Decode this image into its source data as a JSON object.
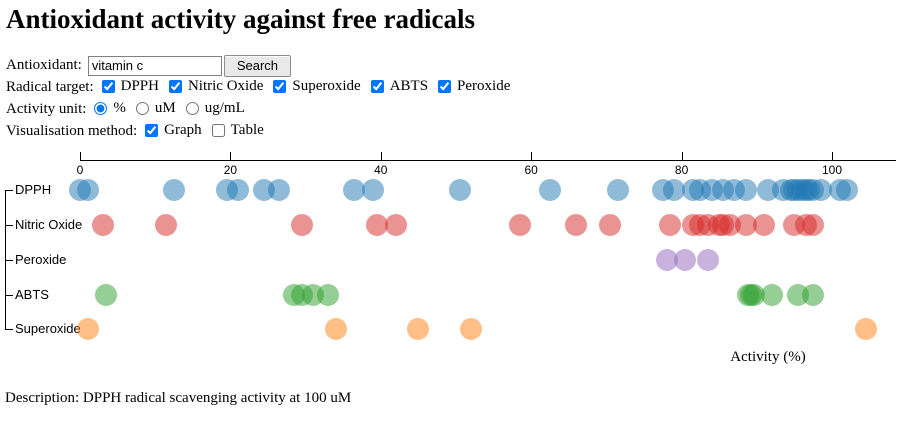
{
  "title": "Antioxidant activity against free radicals",
  "form": {
    "antioxidant_label": "Antioxidant:",
    "search_value": "vitamin c",
    "search_button": "Search",
    "radical_target_label": "Radical target:",
    "radical_targets": [
      {
        "label": "DPPH",
        "checked": true
      },
      {
        "label": "Nitric Oxide",
        "checked": true
      },
      {
        "label": "Superoxide",
        "checked": true
      },
      {
        "label": "ABTS",
        "checked": true
      },
      {
        "label": "Peroxide",
        "checked": true
      }
    ],
    "activity_unit_label": "Activity unit:",
    "activity_units": [
      {
        "label": "%",
        "selected": true
      },
      {
        "label": "uM",
        "selected": false
      },
      {
        "label": "ug/mL",
        "selected": false
      }
    ],
    "visualisation_label": "Visualisation method:",
    "visualisation_options": [
      {
        "label": "Graph",
        "checked": true
      },
      {
        "label": "Table",
        "checked": false
      }
    ]
  },
  "chart_data": {
    "type": "scatter",
    "subtype": "horizontal-strip-plot",
    "xlabel": "Activity (%)",
    "x_ticks": [
      0,
      20,
      40,
      60,
      80,
      100
    ],
    "xlim": [
      0,
      107
    ],
    "grid": false,
    "legend": "none",
    "point_opacity": 0.5,
    "categories": [
      "DPPH",
      "Nitric Oxide",
      "Peroxide",
      "ABTS",
      "Superoxide"
    ],
    "series": [
      {
        "name": "DPPH",
        "color": "#1f77b4",
        "values": [
          0,
          1,
          12.5,
          19.5,
          21,
          24.5,
          26.5,
          36.5,
          39,
          50.5,
          62.5,
          71.5,
          77.5,
          79,
          81.5,
          82.5,
          84,
          85.5,
          87,
          88.5,
          91.5,
          93.5,
          94.5,
          95,
          95.5,
          96,
          96.5,
          97,
          97.5,
          98.5,
          101,
          102
        ]
      },
      {
        "name": "Nitric Oxide",
        "color": "#d62728",
        "values": [
          3,
          11.5,
          29.5,
          39.5,
          42,
          58.5,
          66,
          70.5,
          78.5,
          81.5,
          82.5,
          83.5,
          85,
          85.5,
          86.5,
          88.5,
          91,
          95,
          96.5,
          97.5
        ]
      },
      {
        "name": "Peroxide",
        "color": "#9467bd",
        "values": [
          78,
          80.5,
          83.5
        ]
      },
      {
        "name": "ABTS",
        "color": "#2ca02c",
        "values": [
          3.5,
          28.5,
          29.5,
          31,
          33,
          88.8,
          89.2,
          89.6,
          92,
          95.5,
          97.5
        ]
      },
      {
        "name": "Superoxide",
        "color": "#ff7f0e",
        "values": [
          1,
          34,
          45,
          52,
          104.5
        ]
      }
    ]
  },
  "description": "Description: DPPH radical scavenging activity at 100 uM"
}
